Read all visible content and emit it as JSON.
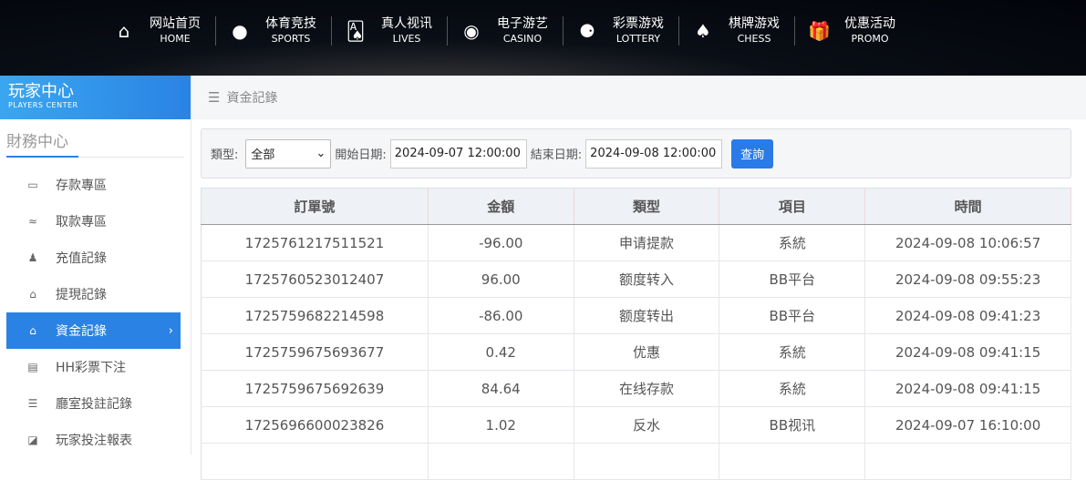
{
  "nav": [
    {
      "cn": "网站首页",
      "en": "HOME",
      "icon": "home-icon",
      "glyph": "⌂"
    },
    {
      "cn": "体育竞技",
      "en": "SPORTS",
      "icon": "ball-icon",
      "glyph": "●"
    },
    {
      "cn": "真人视讯",
      "en": "LIVES",
      "icon": "cards-icon",
      "glyph": "🂡"
    },
    {
      "cn": "电子游艺",
      "en": "CASINO",
      "icon": "roulette-icon",
      "glyph": "◉"
    },
    {
      "cn": "彩票游戏",
      "en": "LOTTERY",
      "icon": "lottery-balls-icon",
      "glyph": "⚈"
    },
    {
      "cn": "棋牌游戏",
      "en": "CHESS",
      "icon": "spade-icon",
      "glyph": "♠"
    },
    {
      "cn": "优惠活动",
      "en": "PROMO",
      "icon": "gift-icon",
      "glyph": "🎁"
    }
  ],
  "sidebar": {
    "title": "玩家中心",
    "subtitle": "PLAYERS CENTER",
    "section": "財務中心",
    "items": [
      {
        "label": "存款專區",
        "icon": "card-icon",
        "glyph": "▭"
      },
      {
        "label": "取款專區",
        "icon": "hand-cash-icon",
        "glyph": "≈"
      },
      {
        "label": "充值記錄",
        "icon": "money-bag-icon",
        "glyph": "♟"
      },
      {
        "label": "提現記錄",
        "icon": "wallet-icon",
        "glyph": "⌂"
      },
      {
        "label": "資金記錄",
        "icon": "house-money-icon",
        "glyph": "⌂",
        "active": true
      },
      {
        "label": "HH彩票下注",
        "icon": "list-icon",
        "glyph": "▤"
      },
      {
        "label": "廳室投註記錄",
        "icon": "bullet-list-icon",
        "glyph": "☰"
      },
      {
        "label": "玩家投注報表",
        "icon": "chart-icon",
        "glyph": "◪"
      }
    ]
  },
  "breadcrumb": "資金記錄",
  "filter": {
    "type_label": "類型:",
    "type_value": "全部",
    "start_label": "開始日期:",
    "start_value": "2024-09-07 12:00:00",
    "end_label": "結束日期:",
    "end_value": "2024-09-08 12:00:00",
    "query_label": "查詢"
  },
  "table": {
    "headers": [
      "訂單號",
      "金額",
      "類型",
      "項目",
      "時間"
    ],
    "rows": [
      [
        "1725761217511521",
        "-96.00",
        "申请提款",
        "系統",
        "2024-09-08 10:06:57"
      ],
      [
        "1725760523012407",
        "96.00",
        "额度转入",
        "BB平台",
        "2024-09-08 09:55:23"
      ],
      [
        "1725759682214598",
        "-86.00",
        "额度转出",
        "BB平台",
        "2024-09-08 09:41:23"
      ],
      [
        "1725759675693677",
        "0.42",
        "优惠",
        "系統",
        "2024-09-08 09:41:15"
      ],
      [
        "1725759675692639",
        "84.64",
        "在线存款",
        "系統",
        "2024-09-08 09:41:15"
      ],
      [
        "1725696600023826",
        "1.02",
        "反水",
        "BB视讯",
        "2024-09-07 16:10:00"
      ],
      [
        "",
        "",
        "",
        "",
        ""
      ]
    ]
  },
  "colors": {
    "accent": "#2a83e4",
    "button": "#2a7ae8"
  }
}
